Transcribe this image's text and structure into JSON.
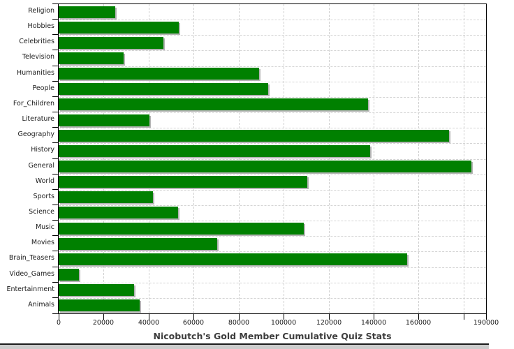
{
  "chart_data": {
    "type": "bar",
    "orientation": "horizontal",
    "title": "Nicobutch's Gold Member Cumulative Quiz Stats",
    "categories": [
      "Religion",
      "Hobbies",
      "Celebrities",
      "Television",
      "Humanities",
      "People",
      "For_Children",
      "Literature",
      "Geography",
      "History",
      "General",
      "World",
      "Sports",
      "Science",
      "Music",
      "Movies",
      "Brain_Teasers",
      "Video_Games",
      "Entertainment",
      "Animals"
    ],
    "values": [
      25000,
      53500,
      46500,
      29000,
      89000,
      93000,
      137500,
      40500,
      173500,
      138500,
      183500,
      110500,
      42000,
      53000,
      109000,
      70500,
      155000,
      9000,
      33500,
      36000
    ],
    "xlabel": "",
    "ylabel": "",
    "xlim": [
      0,
      190000
    ],
    "x_ticks": [
      {
        "value": 0,
        "label": "0"
      },
      {
        "value": 20000,
        "label": "20000"
      },
      {
        "value": 40000,
        "label": "40000"
      },
      {
        "value": 60000,
        "label": "60000"
      },
      {
        "value": 80000,
        "label": "80000"
      },
      {
        "value": 100000,
        "label": "100000"
      },
      {
        "value": 120000,
        "label": "120000"
      },
      {
        "value": 140000,
        "label": "140000"
      },
      {
        "value": 160000,
        "label": "160000"
      },
      {
        "value": 180000,
        "label": ""
      },
      {
        "value": 190000,
        "label": "190000"
      }
    ],
    "grid": "dashed",
    "legend": "none",
    "colors": {
      "bar": "#008000",
      "bar_shadow": "#b4b4b4",
      "grid": "#cfcfcf",
      "axis": "#000000",
      "text": "#1a1a1a",
      "title": "#3d3d3d",
      "footer_band": "#cccccc",
      "background": "#ffffff"
    }
  }
}
